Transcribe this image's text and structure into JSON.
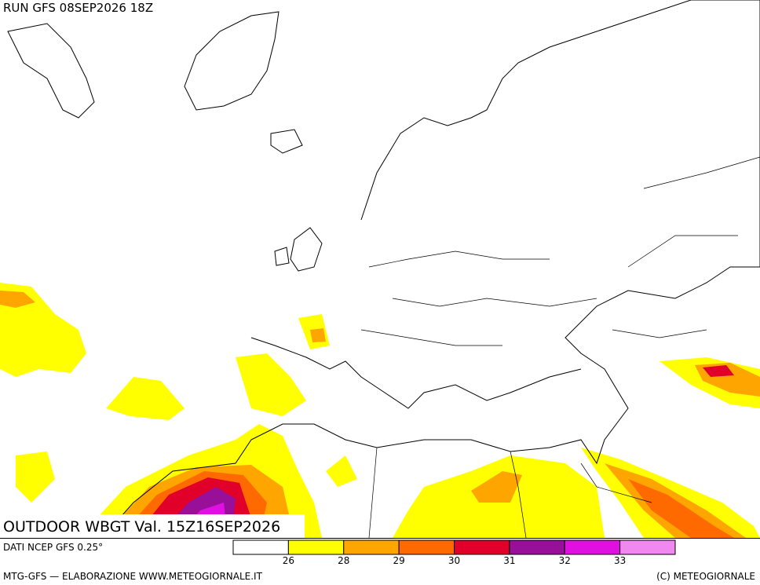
{
  "header": {
    "run": "RUN GFS 08SEP2026 18Z"
  },
  "product": {
    "title": "OUTDOOR WBGT Val. 15Z16SEP2026"
  },
  "source": "DATI NCEP GFS 0.25°",
  "legend": {
    "colors": [
      "#ffffff",
      "#ffff00",
      "#ffa500",
      "#ff6a00",
      "#e0002a",
      "#98109a",
      "#e010e0",
      "#f088f0"
    ],
    "ticks": [
      26,
      28,
      29,
      30,
      31,
      32,
      33
    ]
  },
  "footer": {
    "left": "MTG-GFS — ELABORAZIONE WWW.METEOGIORNALE.IT",
    "right": "(C) METEOGIORNALE"
  }
}
